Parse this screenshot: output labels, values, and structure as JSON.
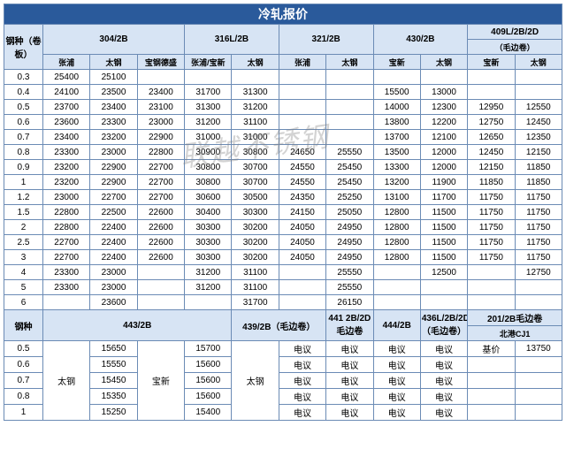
{
  "title": "冷轧报价",
  "watermark": "联越不锈钢",
  "section1": {
    "row_label": "钢种（卷板）",
    "groups": [
      {
        "name": "304/2B",
        "subs": [
          "张浦",
          "太钢",
          "宝钢德盛"
        ]
      },
      {
        "name": "316L/2B",
        "subs": [
          "张浦/宝新",
          "太钢"
        ]
      },
      {
        "name": "321/2B",
        "subs": [
          "张浦",
          "太钢"
        ]
      },
      {
        "name": "430/2B",
        "subs": [
          "宝新",
          "太钢"
        ]
      },
      {
        "name": "409L/2B/2D",
        "note": "（毛边卷）",
        "subs": [
          "宝新",
          "太钢"
        ]
      }
    ],
    "rows": [
      {
        "t": "0.3",
        "c": [
          "25400",
          "25100",
          "",
          "",
          "",
          "",
          "",
          "",
          "",
          "",
          ""
        ]
      },
      {
        "t": "0.4",
        "c": [
          "24100",
          "23500",
          "23400",
          "31700",
          "31300",
          "",
          "",
          "15500",
          "13000",
          "",
          ""
        ]
      },
      {
        "t": "0.5",
        "c": [
          "23700",
          "23400",
          "23100",
          "31300",
          "31200",
          "",
          "",
          "14000",
          "12300",
          "12950",
          "12550"
        ]
      },
      {
        "t": "0.6",
        "c": [
          "23600",
          "23300",
          "23000",
          "31200",
          "31100",
          "",
          "",
          "13800",
          "12200",
          "12750",
          "12450"
        ]
      },
      {
        "t": "0.7",
        "c": [
          "23400",
          "23200",
          "22900",
          "31000",
          "31000",
          "",
          "",
          "13700",
          "12100",
          "12650",
          "12350"
        ]
      },
      {
        "t": "0.8",
        "c": [
          "23300",
          "23000",
          "22800",
          "30900",
          "30800",
          "24650",
          "25550",
          "13500",
          "12000",
          "12450",
          "12150"
        ]
      },
      {
        "t": "0.9",
        "c": [
          "23200",
          "22900",
          "22700",
          "30800",
          "30700",
          "24550",
          "25450",
          "13300",
          "12000",
          "12150",
          "11850"
        ]
      },
      {
        "t": "1",
        "c": [
          "23200",
          "22900",
          "22700",
          "30800",
          "30700",
          "24550",
          "25450",
          "13200",
          "11900",
          "11850",
          "11850"
        ]
      },
      {
        "t": "1.2",
        "c": [
          "23000",
          "22700",
          "22700",
          "30600",
          "30500",
          "24350",
          "25250",
          "13100",
          "11700",
          "11750",
          "11750"
        ]
      },
      {
        "t": "1.5",
        "c": [
          "22800",
          "22500",
          "22600",
          "30400",
          "30300",
          "24150",
          "25050",
          "12800",
          "11500",
          "11750",
          "11750"
        ]
      },
      {
        "t": "2",
        "c": [
          "22800",
          "22400",
          "22600",
          "30300",
          "30200",
          "24050",
          "24950",
          "12800",
          "11500",
          "11750",
          "11750"
        ]
      },
      {
        "t": "2.5",
        "c": [
          "22700",
          "22400",
          "22600",
          "30300",
          "30200",
          "24050",
          "24950",
          "12800",
          "11500",
          "11750",
          "11750"
        ]
      },
      {
        "t": "3",
        "c": [
          "22700",
          "22400",
          "22600",
          "30300",
          "30200",
          "24050",
          "24950",
          "12800",
          "11500",
          "11750",
          "11750"
        ]
      },
      {
        "t": "4",
        "c": [
          "23300",
          "23000",
          "",
          "31200",
          "31100",
          "",
          "25550",
          "",
          "12500",
          "",
          "12750"
        ]
      },
      {
        "t": "5",
        "c": [
          "23300",
          "23000",
          "",
          "31200",
          "31100",
          "",
          "25550",
          "",
          "",
          "",
          ""
        ]
      },
      {
        "t": "6",
        "c": [
          "",
          "23600",
          "",
          "",
          "31700",
          "",
          "26150",
          "",
          "",
          "",
          ""
        ]
      }
    ]
  },
  "section2": {
    "row_label": "钢种",
    "groups": [
      {
        "name": "443/2B",
        "span": 4
      },
      {
        "name": "439/2B（毛边卷）",
        "span": 2
      },
      {
        "name": "441 2B/2D 毛边卷",
        "span": 1
      },
      {
        "name": "444/2B",
        "span": 1
      },
      {
        "name": "436L/2B/2D（毛边卷）",
        "span": 1
      },
      {
        "name": "201/2B毛边卷",
        "span": 2,
        "sub": "北港CJ1"
      }
    ],
    "merged": {
      "col0": "太钢",
      "col2": "宝新",
      "col4": "太钢"
    },
    "rows": [
      {
        "t": "0.5",
        "c": [
          "15650",
          "",
          "15700",
          "电议",
          "电议",
          "电议",
          "电议",
          "基价",
          "13750"
        ]
      },
      {
        "t": "0.6",
        "c": [
          "15550",
          "",
          "15600",
          "电议",
          "电议",
          "电议",
          "电议",
          "",
          ""
        ]
      },
      {
        "t": "0.7",
        "c": [
          "15450",
          "",
          "15600",
          "电议",
          "电议",
          "电议",
          "电议",
          "",
          ""
        ]
      },
      {
        "t": "0.8",
        "c": [
          "15350",
          "",
          "15600",
          "电议",
          "电议",
          "电议",
          "电议",
          "",
          ""
        ]
      },
      {
        "t": "1",
        "c": [
          "15250",
          "",
          "15400",
          "电议",
          "电议",
          "电议",
          "电议",
          "",
          ""
        ]
      }
    ]
  }
}
